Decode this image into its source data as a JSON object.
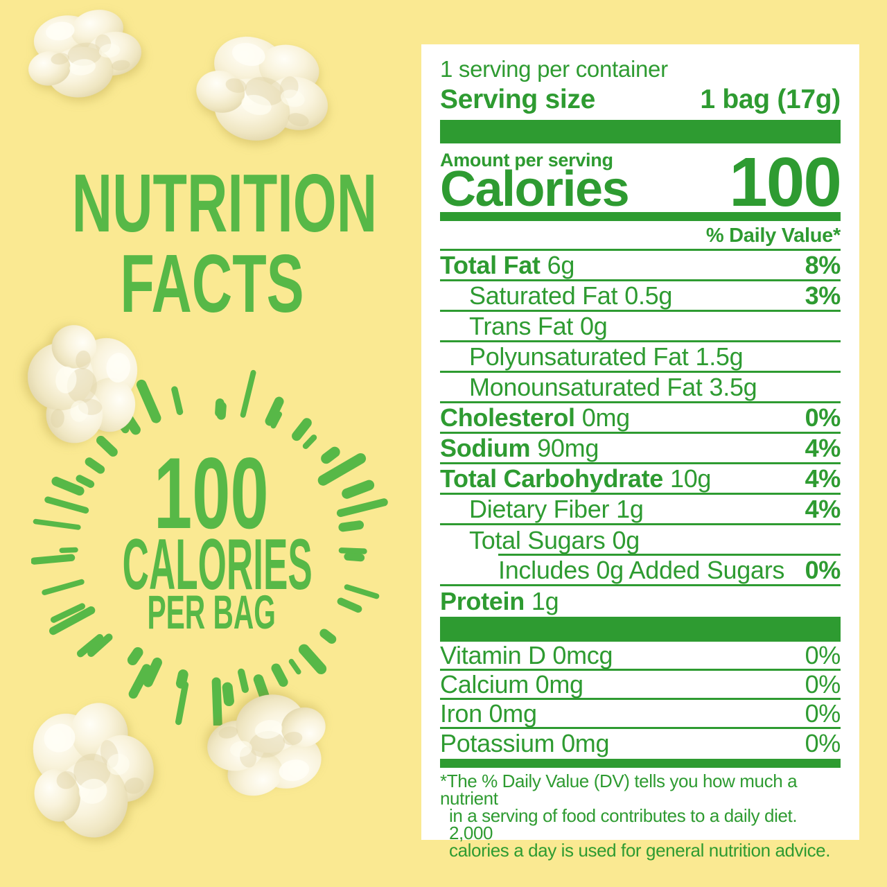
{
  "colors": {
    "background_yellow": "#FAE992",
    "headline_green": "#57B847",
    "panel_green": "#2E9B31",
    "panel_white": "#FFFFFF"
  },
  "headline": {
    "line1": "NUTRITION",
    "line2": "FACTS"
  },
  "burst": {
    "big": "100",
    "mid": "CALORIES",
    "small": "PER BAG"
  },
  "panel": {
    "servings_per_container": "1 serving per container",
    "serving_size_label": "Serving size",
    "serving_size_value": "1 bag (17g)",
    "amount_per_serving": "Amount per serving",
    "calories_label": "Calories",
    "calories_value": "100",
    "daily_value_header": "% Daily Value*",
    "rows": [
      {
        "label": "Total Fat",
        "value": "6g",
        "pct": "8%",
        "bold": true,
        "indent": 0
      },
      {
        "label": "Saturated Fat",
        "value": "0.5g",
        "pct": "3%",
        "indent": 1
      },
      {
        "label": "Trans Fat",
        "value": "0g",
        "pct": "",
        "indent": 1
      },
      {
        "label": "Polyunsaturated Fat",
        "value": "1.5g",
        "pct": "",
        "indent": 1
      },
      {
        "label": "Monounsaturated Fat",
        "value": "3.5g",
        "pct": "",
        "indent": 1
      },
      {
        "label": "Cholesterol",
        "value": "0mg",
        "pct": "0%",
        "bold": true,
        "indent": 0
      },
      {
        "label": "Sodium",
        "value": "90mg",
        "pct": "4%",
        "bold": true,
        "indent": 0
      },
      {
        "label": "Total Carbohydrate",
        "value": "10g",
        "pct": "4%",
        "bold": true,
        "indent": 0
      },
      {
        "label": "Dietary Fiber",
        "value": "1g",
        "pct": "4%",
        "indent": 1
      },
      {
        "label": "Total Sugars",
        "value": "0g",
        "pct": "",
        "indent": 1,
        "ruleIndent": true
      },
      {
        "label": "Includes 0g Added Sugars",
        "value": "",
        "pct": "0%",
        "indent": 2
      },
      {
        "label": "Protein",
        "value": "1g",
        "pct": "",
        "bold": true,
        "indent": 0,
        "noRule": true
      }
    ],
    "vitamin_rows": [
      {
        "label": "Vitamin D 0mcg",
        "pct": "0%"
      },
      {
        "label": "Calcium 0mg",
        "pct": "0%"
      },
      {
        "label": "Iron 0mg",
        "pct": "0%"
      },
      {
        "label": "Potassium 0mg",
        "pct": "0%",
        "noRule": true
      }
    ],
    "footnote_lines": [
      "*The % Daily Value (DV) tells you how much a nutrient",
      "in a serving of food contributes to a daily diet. 2,000",
      "calories a day is used for general nutrition advice."
    ]
  }
}
